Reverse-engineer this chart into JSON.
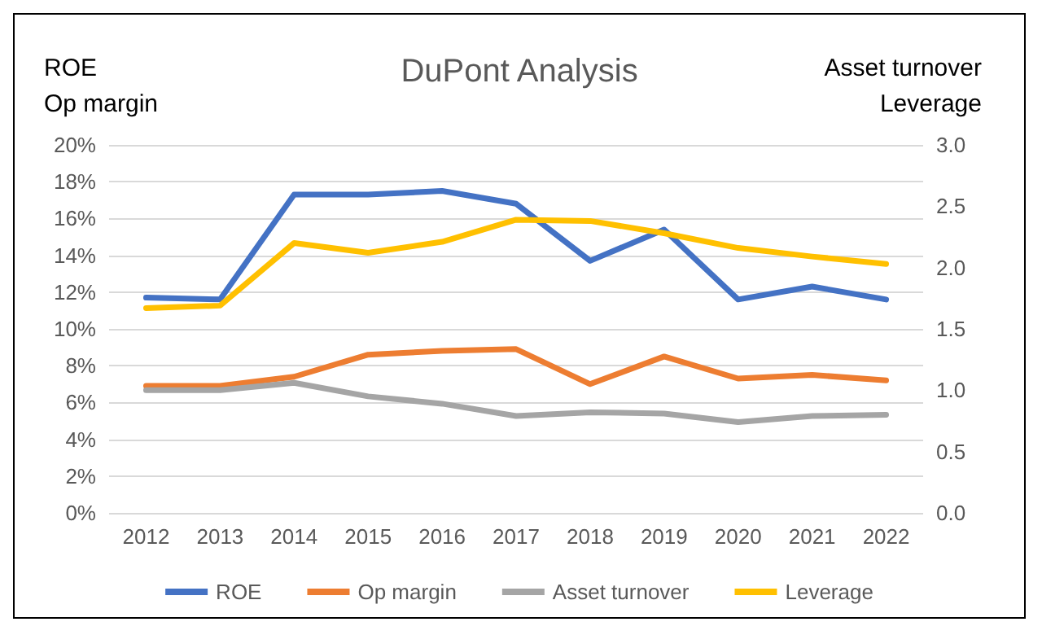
{
  "chart_data": {
    "type": "line",
    "title": "DuPont Analysis",
    "ylabel": "ROE\nOp margin",
    "y2label": "Asset turnover\nLeverage",
    "categories": [
      "2012",
      "2013",
      "2014",
      "2015",
      "2016",
      "2017",
      "2018",
      "2019",
      "2020",
      "2021",
      "2022"
    ],
    "series": [
      {
        "name": "ROE",
        "color": "#4472c4",
        "values": [
          11.7,
          11.6,
          17.3,
          17.3,
          17.5,
          16.8,
          13.7,
          15.4,
          11.6,
          12.3,
          11.6
        ]
      },
      {
        "name": "Op margin",
        "color": "#ed7d31",
        "values": [
          6.9,
          6.9,
          7.4,
          8.6,
          8.8,
          8.9,
          7.0,
          8.5,
          7.3,
          7.5,
          7.2
        ]
      },
      {
        "name": "Asset turnover",
        "color": "#a5a5a5",
        "axis": "y2",
        "values": [
          1.0,
          1.0,
          1.06,
          0.95,
          0.89,
          0.79,
          0.82,
          0.81,
          0.74,
          0.79,
          0.8
        ]
      },
      {
        "name": "Leverage",
        "color": "#ffc000",
        "axis": "y2",
        "values": [
          1.67,
          1.69,
          2.2,
          2.12,
          2.21,
          2.39,
          2.38,
          2.28,
          2.16,
          2.09,
          2.03
        ]
      }
    ],
    "ylim": [
      0,
      20
    ],
    "yticks": [
      {
        "value": 0,
        "label": "0%"
      },
      {
        "value": 2,
        "label": "2%"
      },
      {
        "value": 4,
        "label": "4%"
      },
      {
        "value": 6,
        "label": "6%"
      },
      {
        "value": 8,
        "label": "8%"
      },
      {
        "value": 10,
        "label": "10%"
      },
      {
        "value": 12,
        "label": "12%"
      },
      {
        "value": 14,
        "label": "14%"
      },
      {
        "value": 16,
        "label": "16%"
      },
      {
        "value": 18,
        "label": "18%"
      },
      {
        "value": 20,
        "label": "20%"
      }
    ],
    "y2lim": [
      0,
      3
    ],
    "y2ticks": [
      {
        "value": 0,
        "label": "0.0"
      },
      {
        "value": 0.5,
        "label": "0.5"
      },
      {
        "value": 1,
        "label": "1.0"
      },
      {
        "value": 1.5,
        "label": "1.5"
      },
      {
        "value": 2,
        "label": "2.0"
      },
      {
        "value": 2.5,
        "label": "2.5"
      },
      {
        "value": 3,
        "label": "3.0"
      }
    ],
    "grid": "y",
    "legend": "bottom",
    "marker": "none",
    "line_style": "solid"
  }
}
